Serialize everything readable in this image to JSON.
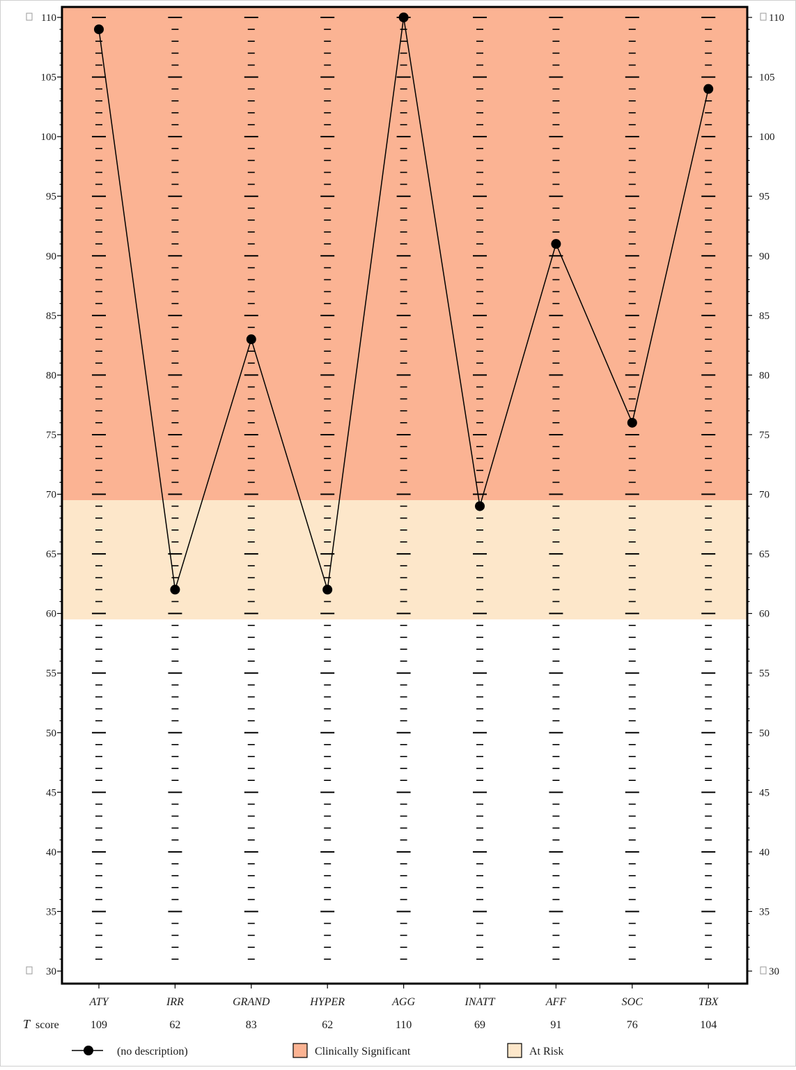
{
  "chart_data": {
    "type": "line",
    "title": "",
    "xlabel": "",
    "ylabel": "",
    "ylim": [
      30,
      110
    ],
    "y_ticks": [
      30,
      35,
      40,
      45,
      50,
      55,
      60,
      65,
      70,
      75,
      80,
      85,
      90,
      95,
      100,
      105,
      110
    ],
    "y_tick_labels": [
      "30",
      "35",
      "40",
      "45",
      "50",
      "55",
      "60",
      "65",
      "70",
      "75",
      "80",
      "85",
      "90",
      "95",
      "100",
      "105",
      "110"
    ],
    "y_axis_both_sides": true,
    "categories": [
      "ATY",
      "IRR",
      "GRAND",
      "HYPER",
      "AGG",
      "INATT",
      "AFF",
      "SOC",
      "TBX"
    ],
    "series": [
      {
        "name": "(no description)",
        "values": [
          109,
          62,
          83,
          62,
          110,
          69,
          91,
          76,
          104
        ],
        "color": "#000000",
        "marker": "circle"
      }
    ],
    "score_row": {
      "label_main": "T",
      "label_suffix": "score",
      "values": [
        "109",
        "62",
        "83",
        "62",
        "110",
        "69",
        "91",
        "76",
        "104"
      ]
    },
    "bands": [
      {
        "name": "Clinically Significant",
        "from": 69.5,
        "to": 110.9,
        "color": "#fbb393"
      },
      {
        "name": "At Risk",
        "from": 59.5,
        "to": 69.5,
        "color": "#fde7ca"
      }
    ],
    "grid": true,
    "legend": {
      "position": "bottom",
      "items": [
        {
          "label": "(no description)",
          "kind": "line-marker",
          "color": "#000000"
        },
        {
          "label": "Clinically Significant",
          "kind": "swatch",
          "color": "#fbb393"
        },
        {
          "label": "At Risk",
          "kind": "swatch",
          "color": "#fde7ca"
        }
      ]
    }
  }
}
